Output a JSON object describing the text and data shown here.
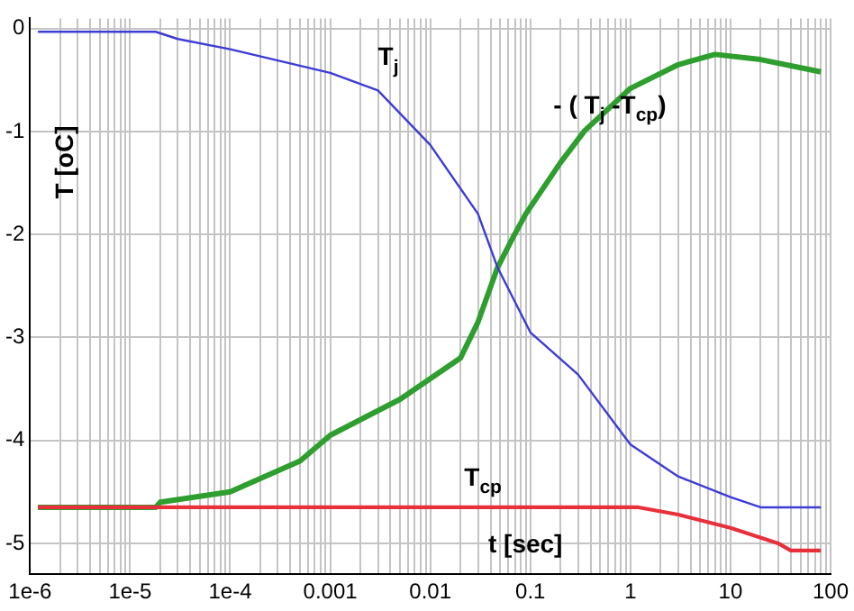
{
  "chart_data": {
    "type": "line",
    "xlabel": "t [sec]",
    "ylabel": "T [oC]",
    "log": "x",
    "grid": true,
    "xlim": [
      1e-06,
      100
    ],
    "ylim": [
      -5.3,
      0.1
    ],
    "xticks": [
      {
        "value": 1e-06,
        "label": "1e-6"
      },
      {
        "value": 2e-06,
        "label": null
      },
      {
        "value": 3e-06,
        "label": null
      },
      {
        "value": 4e-06,
        "label": null
      },
      {
        "value": 5e-06,
        "label": null
      },
      {
        "value": 6e-06,
        "label": null
      },
      {
        "value": 7e-06,
        "label": null
      },
      {
        "value": 8e-06,
        "label": null
      },
      {
        "value": 9e-06,
        "label": null
      },
      {
        "value": 1e-05,
        "label": "1e-5"
      },
      {
        "value": 2e-05,
        "label": null
      },
      {
        "value": 3e-05,
        "label": null
      },
      {
        "value": 4e-05,
        "label": null
      },
      {
        "value": 5e-05,
        "label": null
      },
      {
        "value": 6e-05,
        "label": null
      },
      {
        "value": 7e-05,
        "label": null
      },
      {
        "value": 8e-05,
        "label": null
      },
      {
        "value": 9e-05,
        "label": null
      },
      {
        "value": 0.0001,
        "label": "1e-4"
      },
      {
        "value": 0.0002,
        "label": null
      },
      {
        "value": 0.0003,
        "label": null
      },
      {
        "value": 0.0004,
        "label": null
      },
      {
        "value": 0.0005,
        "label": null
      },
      {
        "value": 0.0006,
        "label": null
      },
      {
        "value": 0.0007,
        "label": null
      },
      {
        "value": 0.0008,
        "label": null
      },
      {
        "value": 0.0009,
        "label": null
      },
      0.001,
      {
        "value": 0.002,
        "label": null
      },
      {
        "value": 0.003,
        "label": null
      },
      {
        "value": 0.004,
        "label": null
      },
      {
        "value": 0.005,
        "label": null
      },
      {
        "value": 0.006,
        "label": null
      },
      {
        "value": 0.007,
        "label": null
      },
      {
        "value": 0.008,
        "label": null
      },
      {
        "value": 0.009,
        "label": null
      },
      0.01,
      {
        "value": 0.02,
        "label": null
      },
      {
        "value": 0.03,
        "label": null
      },
      {
        "value": 0.04,
        "label": null
      },
      {
        "value": 0.05,
        "label": null
      },
      {
        "value": 0.06,
        "label": null
      },
      {
        "value": 0.07,
        "label": null
      },
      {
        "value": 0.08,
        "label": null
      },
      {
        "value": 0.09,
        "label": null
      },
      0.1,
      {
        "value": 0.2,
        "label": null
      },
      {
        "value": 0.3,
        "label": null
      },
      {
        "value": 0.4,
        "label": null
      },
      {
        "value": 0.5,
        "label": null
      },
      {
        "value": 0.6,
        "label": null
      },
      {
        "value": 0.7,
        "label": null
      },
      {
        "value": 0.8,
        "label": null
      },
      {
        "value": 0.9,
        "label": null
      },
      1,
      {
        "value": 2,
        "label": null
      },
      {
        "value": 3,
        "label": null
      },
      {
        "value": 4,
        "label": null
      },
      {
        "value": 5,
        "label": null
      },
      {
        "value": 6,
        "label": null
      },
      {
        "value": 7,
        "label": null
      },
      {
        "value": 8,
        "label": null
      },
      {
        "value": 9,
        "label": null
      },
      10,
      {
        "value": 20,
        "label": null
      },
      {
        "value": 30,
        "label": null
      },
      {
        "value": 40,
        "label": null
      },
      {
        "value": 50,
        "label": null
      },
      {
        "value": 60,
        "label": null
      },
      {
        "value": 70,
        "label": null
      },
      {
        "value": 80,
        "label": null
      },
      {
        "value": 90,
        "label": null
      },
      100
    ],
    "yticks": [
      -5,
      -4,
      -3,
      -2,
      -1,
      0
    ],
    "series": [
      {
        "name": "T$_{j}$",
        "color": "#3c3cd6",
        "x": [
          1.2e-06,
          1.8e-05,
          3e-05,
          0.0001,
          0.001,
          0.003,
          0.01,
          0.03,
          0.047,
          0.1,
          0.3,
          1,
          3,
          10,
          20,
          80
        ],
        "values": [
          -0.03,
          -0.03,
          -0.1,
          -0.2,
          -0.43,
          -0.6,
          -1.13,
          -1.8,
          -2.32,
          -2.95,
          -3.36,
          -4.04,
          -4.35,
          -4.55,
          -4.65,
          -4.65
        ]
      },
      {
        "name": "T$_{cp}$",
        "color": "#e8303a",
        "x": [
          1.2e-06,
          1.2,
          3,
          10,
          30,
          40,
          80
        ],
        "values": [
          -4.65,
          -4.65,
          -4.72,
          -4.85,
          -5.0,
          -5.07,
          -5.07
        ]
      },
      {
        "name": "- ( T$_{j}$ -T$_{cp}$)",
        "color": "#2e9e2e",
        "x": [
          1.2e-06,
          1.8e-05,
          2e-05,
          0.0001,
          0.0005,
          0.001,
          0.005,
          0.02,
          0.03,
          0.047,
          0.066,
          0.09,
          0.2,
          0.35,
          1,
          3,
          7,
          20,
          80
        ],
        "values": [
          -4.65,
          -4.65,
          -4.6,
          -4.5,
          -4.2,
          -3.95,
          -3.6,
          -3.2,
          -2.85,
          -2.32,
          -2.04,
          -1.8,
          -1.3,
          -0.99,
          -0.58,
          -0.35,
          -0.25,
          -0.3,
          -0.42
        ]
      }
    ]
  }
}
